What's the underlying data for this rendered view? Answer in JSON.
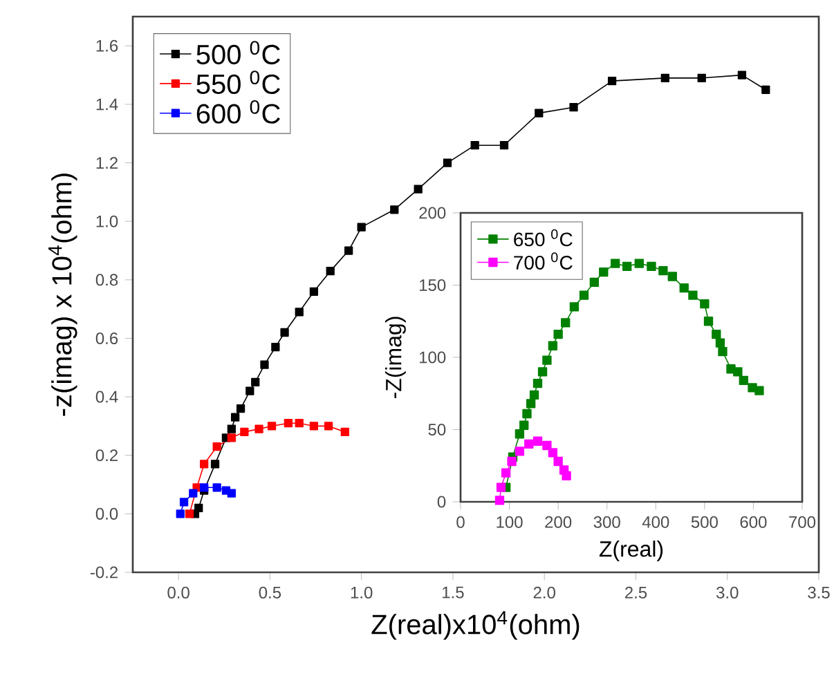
{
  "chart_data": [
    {
      "type": "line",
      "xlabel": "Z(real)x10$^{4}$(ohm)",
      "ylabel": "-z(imag) x 10$^{4}$(ohm)",
      "marker": "square",
      "legend": "top left",
      "xlim": [
        -0.25,
        3.5
      ],
      "ylim": [
        -0.2,
        1.7
      ],
      "xticks": [
        {
          "value": 0,
          "label": "0.0"
        },
        0.5,
        {
          "value": 1,
          "label": "1.0"
        },
        1.5,
        {
          "value": 2,
          "label": "2.0"
        },
        2.5,
        {
          "value": 3,
          "label": "3.0"
        },
        3.5
      ],
      "yticks": [
        -0.2,
        {
          "value": 0,
          "label": "0.0"
        },
        0.2,
        0.4,
        0.6,
        0.8,
        {
          "value": 1,
          "label": "1.0"
        },
        1.2,
        1.4,
        1.6
      ],
      "series": [
        {
          "name": "500 $^{0}$C",
          "color": "#000000",
          "x": [
            0.09,
            0.11,
            0.14,
            0.2,
            0.26,
            0.29,
            0.31,
            0.34,
            0.39,
            0.42,
            0.47,
            0.53,
            0.58,
            0.66,
            0.74,
            0.83,
            0.93,
            1.0,
            1.18,
            1.31,
            1.47,
            1.62,
            1.78,
            1.97,
            2.16,
            2.37,
            2.66,
            2.86,
            3.08,
            3.21
          ],
          "values": [
            0.0,
            0.02,
            0.08,
            0.17,
            0.26,
            0.29,
            0.33,
            0.36,
            0.42,
            0.45,
            0.51,
            0.57,
            0.62,
            0.69,
            0.76,
            0.83,
            0.9,
            0.98,
            1.04,
            1.11,
            1.2,
            1.26,
            1.26,
            1.37,
            1.39,
            1.48,
            1.49,
            1.49,
            1.5,
            1.45
          ]
        },
        {
          "name": "550 $^{0}$C",
          "color": "#ff0000",
          "x": [
            0.06,
            0.1,
            0.14,
            0.21,
            0.29,
            0.36,
            0.44,
            0.51,
            0.6,
            0.66,
            0.74,
            0.82,
            0.91
          ],
          "values": [
            0.0,
            0.09,
            0.17,
            0.23,
            0.26,
            0.28,
            0.29,
            0.3,
            0.31,
            0.31,
            0.3,
            0.3,
            0.28
          ]
        },
        {
          "name": "600 $^{0}$C",
          "color": "#0000ff",
          "x": [
            0.01,
            0.03,
            0.08,
            0.14,
            0.21,
            0.26,
            0.29
          ],
          "values": [
            0.0,
            0.04,
            0.07,
            0.09,
            0.09,
            0.08,
            0.07
          ]
        }
      ]
    },
    {
      "type": "line",
      "xlabel": "Z(real)",
      "ylabel": "-Z(imag)",
      "marker": "square",
      "legend": "top left",
      "xlim": [
        0,
        700
      ],
      "ylim": [
        0,
        200
      ],
      "xticks": [
        0,
        100,
        200,
        300,
        400,
        500,
        600,
        700
      ],
      "yticks": [
        0,
        50,
        100,
        150,
        200
      ],
      "series": [
        {
          "name": "650 $^{0}$C",
          "color": "#008000",
          "x": [
            93,
            107,
            121,
            130,
            136,
            144,
            151,
            158,
            168,
            177,
            189,
            200,
            215,
            233,
            253,
            274,
            293,
            317,
            341,
            366,
            391,
            415,
            434,
            458,
            476,
            500,
            508,
            524,
            532,
            537,
            554,
            568,
            580,
            598,
            612
          ],
          "values": [
            10,
            31,
            47,
            53,
            61,
            68,
            74,
            82,
            90,
            98,
            108,
            116,
            124,
            135,
            143,
            152,
            159,
            165,
            163,
            165,
            163,
            160,
            156,
            148,
            143,
            137,
            125,
            116,
            110,
            104,
            92,
            90,
            84,
            79,
            77
          ]
        },
        {
          "name": "700 $^{0}$C",
          "color": "#ff00ff",
          "x": [
            80,
            83,
            93,
            105,
            121,
            140,
            158,
            177,
            189,
            200,
            212,
            217
          ],
          "values": [
            1,
            10,
            20,
            28,
            35,
            40,
            42,
            39,
            34,
            28,
            22,
            18
          ]
        }
      ]
    }
  ]
}
